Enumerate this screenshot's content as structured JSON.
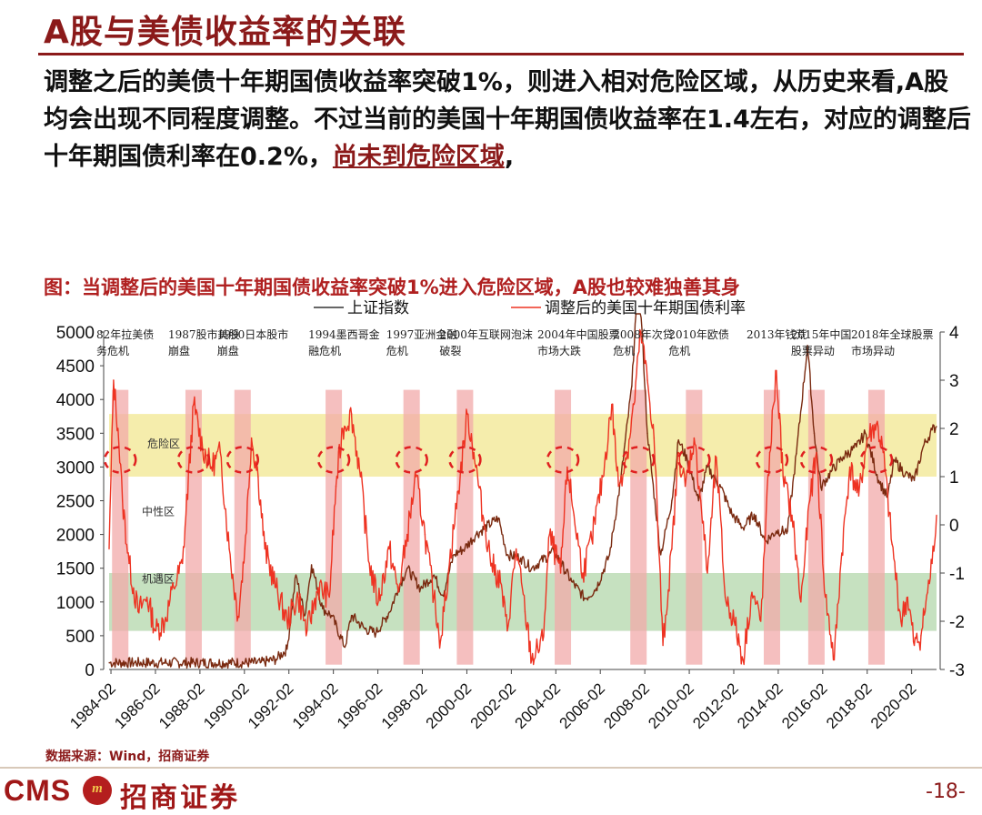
{
  "header": {
    "title": "A股与美债收益率的关联"
  },
  "body": {
    "text": "调整之后的美债十年期国债收益率突破1%，则进入相对危险区域，从历史来看,A股均会出现不同程度调整。不过当前的美国十年期国债收益率在1.4左右，对应的调整后十年期国债利率在0.2%，",
    "highlight": "尚未到危险区域",
    "tail": ","
  },
  "figure": {
    "title": "图：当调整后的美国十年期国债收益率突破1%进入危险区域，A股也较难独善其身",
    "source": "数据来源：Wind，招商证券"
  },
  "footer": {
    "logo_text": "CMS",
    "logo_badge": "m",
    "logo_cn": "招商证券",
    "page": "-18-"
  },
  "colors": {
    "brand": "#8b1a1a",
    "index_line": "#7a2a10",
    "rate_line": "#ee3322",
    "danger_zone": "#f3ea9d",
    "opportunity_zone": "#bcdcb5",
    "event_band": "#f2a9a9"
  },
  "chart_data": {
    "type": "line",
    "x_ticks": [
      "1984-02",
      "1986-02",
      "1988-02",
      "1990-02",
      "1992-02",
      "1994-02",
      "1996-02",
      "1998-02",
      "2000-02",
      "2002-02",
      "2004-02",
      "2006-02",
      "2008-02",
      "2010-02",
      "2012-02",
      "2014-02",
      "2016-02",
      "2018-02",
      "2020-02"
    ],
    "x_range": [
      1984.0,
      2021.2
    ],
    "y_left": {
      "range": [
        0,
        5000
      ],
      "ticks": [
        0,
        500,
        1000,
        1500,
        2000,
        2500,
        3000,
        3500,
        4000,
        4500,
        5000
      ]
    },
    "y_right": {
      "range": [
        -3,
        4
      ],
      "ticks": [
        -3,
        -2,
        -1,
        0,
        1,
        2,
        3,
        4
      ]
    },
    "legend": [
      "上证指数",
      "调整后的美国十年期国债利率"
    ],
    "zones": [
      {
        "name": "危险区",
        "axis": "right",
        "from": 1.0,
        "to": 2.3
      },
      {
        "name": "中性区"
      },
      {
        "name": "机遇区",
        "axis": "right",
        "from": -2.2,
        "to": -1.0
      }
    ],
    "events": [
      {
        "year": 1984.5,
        "label": [
          "82年拉美债",
          "务危机"
        ]
      },
      {
        "year": 1987.8,
        "label": [
          "1987股市美股",
          "崩盘"
        ]
      },
      {
        "year": 1990.0,
        "label": [
          "1990日本股市",
          "崩盘"
        ]
      },
      {
        "year": 1994.1,
        "label": [
          "1994墨西哥金",
          "融危机"
        ]
      },
      {
        "year": 1997.6,
        "label": [
          "1997亚洲金融",
          "危机"
        ]
      },
      {
        "year": 2000.0,
        "label": [
          "2000年互联网泡沫",
          "破裂"
        ]
      },
      {
        "year": 2004.4,
        "label": [
          "2004年中国股票",
          "市场大跌"
        ]
      },
      {
        "year": 2007.8,
        "label": [
          "2008年次贷",
          "危机"
        ]
      },
      {
        "year": 2010.3,
        "label": [
          "2010年欧债",
          "危机"
        ]
      },
      {
        "year": 2013.8,
        "label": [
          "2013年钱荒"
        ]
      },
      {
        "year": 2015.8,
        "label": [
          "2015年中国",
          "股票异动"
        ]
      },
      {
        "year": 2018.5,
        "label": [
          "2018年全球股票",
          "市场异动"
        ]
      }
    ],
    "annotation": "2",
    "series": [
      {
        "name": "上证指数",
        "axis": "left",
        "points": [
          [
            1984.0,
            100
          ],
          [
            1990.8,
            100
          ],
          [
            1991.5,
            150
          ],
          [
            1992.0,
            300
          ],
          [
            1992.4,
            1400
          ],
          [
            1992.8,
            800
          ],
          [
            1993.1,
            1550
          ],
          [
            1993.6,
            900
          ],
          [
            1994.0,
            800
          ],
          [
            1994.6,
            330
          ],
          [
            1994.9,
            800
          ],
          [
            1995.5,
            600
          ],
          [
            1996.0,
            540
          ],
          [
            1996.6,
            850
          ],
          [
            1997.0,
            1200
          ],
          [
            1997.4,
            1500
          ],
          [
            1998.0,
            1200
          ],
          [
            1998.6,
            1400
          ],
          [
            1999.0,
            1100
          ],
          [
            1999.5,
            1700
          ],
          [
            2000.0,
            1800
          ],
          [
            2000.5,
            2000
          ],
          [
            2001.5,
            2245
          ],
          [
            2001.9,
            1700
          ],
          [
            2002.5,
            1650
          ],
          [
            2003.0,
            1500
          ],
          [
            2004.0,
            1750
          ],
          [
            2004.8,
            1300
          ],
          [
            2005.4,
            1050
          ],
          [
            2005.9,
            1200
          ],
          [
            2006.5,
            1700
          ],
          [
            2007.0,
            2800
          ],
          [
            2007.5,
            4200
          ],
          [
            2007.8,
            6000
          ],
          [
            2008.2,
            3500
          ],
          [
            2008.8,
            1700
          ],
          [
            2009.3,
            2500
          ],
          [
            2009.6,
            3400
          ],
          [
            2010.0,
            3100
          ],
          [
            2010.5,
            2500
          ],
          [
            2010.9,
            3000
          ],
          [
            2011.5,
            2700
          ],
          [
            2012.0,
            2300
          ],
          [
            2012.5,
            2100
          ],
          [
            2013.0,
            2300
          ],
          [
            2013.5,
            1900
          ],
          [
            2014.0,
            2050
          ],
          [
            2014.5,
            2050
          ],
          [
            2014.9,
            3200
          ],
          [
            2015.4,
            4800
          ],
          [
            2015.7,
            3500
          ],
          [
            2016.0,
            2700
          ],
          [
            2016.5,
            2950
          ],
          [
            2017.0,
            3150
          ],
          [
            2017.6,
            3300
          ],
          [
            2018.0,
            3500
          ],
          [
            2018.6,
            2800
          ],
          [
            2019.0,
            2550
          ],
          [
            2019.3,
            3100
          ],
          [
            2019.8,
            2900
          ],
          [
            2020.2,
            2800
          ],
          [
            2020.6,
            3300
          ],
          [
            2021.0,
            3550
          ],
          [
            2021.2,
            3600
          ]
        ]
      },
      {
        "name": "调整后的美国十年期国债利率",
        "axis": "right",
        "points": [
          [
            1984.0,
            -0.5
          ],
          [
            1984.2,
            3.0
          ],
          [
            1984.4,
            2.0
          ],
          [
            1984.6,
            0.5
          ],
          [
            1984.9,
            -0.8
          ],
          [
            1985.3,
            -1.8
          ],
          [
            1985.7,
            -1.5
          ],
          [
            1986.1,
            -2.2
          ],
          [
            1986.5,
            -2.0
          ],
          [
            1986.9,
            -1.3
          ],
          [
            1987.3,
            -0.8
          ],
          [
            1987.8,
            2.5
          ],
          [
            1988.2,
            1.6
          ],
          [
            1988.6,
            1.2
          ],
          [
            1989.0,
            1.5
          ],
          [
            1989.4,
            -0.5
          ],
          [
            1989.8,
            -1.9
          ],
          [
            1990.1,
            -0.5
          ],
          [
            1990.4,
            1.8
          ],
          [
            1990.7,
            1.0
          ],
          [
            1991.0,
            -0.5
          ],
          [
            1991.5,
            -1.3
          ],
          [
            1992.0,
            -2.0
          ],
          [
            1992.5,
            -1.5
          ],
          [
            1992.9,
            -2.2
          ],
          [
            1993.4,
            -1.3
          ],
          [
            1993.9,
            -1.5
          ],
          [
            1994.2,
            0.8
          ],
          [
            1994.5,
            2.0
          ],
          [
            1994.9,
            2.3
          ],
          [
            1995.3,
            1.0
          ],
          [
            1995.7,
            -0.8
          ],
          [
            1996.1,
            -1.6
          ],
          [
            1996.6,
            -0.5
          ],
          [
            1997.0,
            -1.4
          ],
          [
            1997.4,
            -0.2
          ],
          [
            1997.8,
            1.0
          ],
          [
            1998.2,
            -0.2
          ],
          [
            1998.6,
            -1.5
          ],
          [
            1998.9,
            -2.4
          ],
          [
            1999.3,
            -0.8
          ],
          [
            1999.7,
            0.7
          ],
          [
            2000.1,
            2.3
          ],
          [
            2000.4,
            1.5
          ],
          [
            2000.8,
            0.2
          ],
          [
            2001.2,
            -0.8
          ],
          [
            2001.6,
            -1.2
          ],
          [
            2001.9,
            -2.2
          ],
          [
            2002.3,
            -0.5
          ],
          [
            2002.7,
            -1.8
          ],
          [
            2003.0,
            -2.8
          ],
          [
            2003.5,
            -2.4
          ],
          [
            2003.8,
            -0.2
          ],
          [
            2004.3,
            -1.0
          ],
          [
            2004.6,
            1.2
          ],
          [
            2004.9,
            0.2
          ],
          [
            2005.3,
            -1.0
          ],
          [
            2005.7,
            -0.3
          ],
          [
            2006.2,
            1.0
          ],
          [
            2006.6,
            2.5
          ],
          [
            2006.9,
            0.8
          ],
          [
            2007.3,
            1.5
          ],
          [
            2007.6,
            2.5
          ],
          [
            2007.9,
            4.0
          ],
          [
            2008.2,
            3.0
          ],
          [
            2008.5,
            1.8
          ],
          [
            2008.9,
            -2.5
          ],
          [
            2009.3,
            -0.5
          ],
          [
            2009.6,
            1.5
          ],
          [
            2009.9,
            0.8
          ],
          [
            2010.3,
            1.8
          ],
          [
            2010.6,
            0.5
          ],
          [
            2010.9,
            -1.0
          ],
          [
            2011.3,
            1.4
          ],
          [
            2011.7,
            -1.5
          ],
          [
            2012.1,
            -2.0
          ],
          [
            2012.5,
            -2.8
          ],
          [
            2012.9,
            -1.4
          ],
          [
            2013.3,
            -2.0
          ],
          [
            2013.7,
            1.5
          ],
          [
            2014.0,
            3.2
          ],
          [
            2014.3,
            1.0
          ],
          [
            2014.7,
            0.2
          ],
          [
            2015.1,
            -1.6
          ],
          [
            2015.5,
            0.5
          ],
          [
            2015.8,
            1.5
          ],
          [
            2016.2,
            -1.5
          ],
          [
            2016.6,
            -2.8
          ],
          [
            2016.9,
            -0.8
          ],
          [
            2017.3,
            1.2
          ],
          [
            2017.7,
            0.6
          ],
          [
            2018.1,
            1.8
          ],
          [
            2018.5,
            2.1
          ],
          [
            2018.8,
            1.5
          ],
          [
            2019.2,
            -0.4
          ],
          [
            2019.6,
            -2.0
          ],
          [
            2019.9,
            -1.5
          ],
          [
            2020.2,
            -2.5
          ],
          [
            2020.5,
            -2.3
          ],
          [
            2020.8,
            -1.4
          ],
          [
            2021.0,
            -0.8
          ],
          [
            2021.2,
            0.2
          ]
        ]
      }
    ]
  }
}
